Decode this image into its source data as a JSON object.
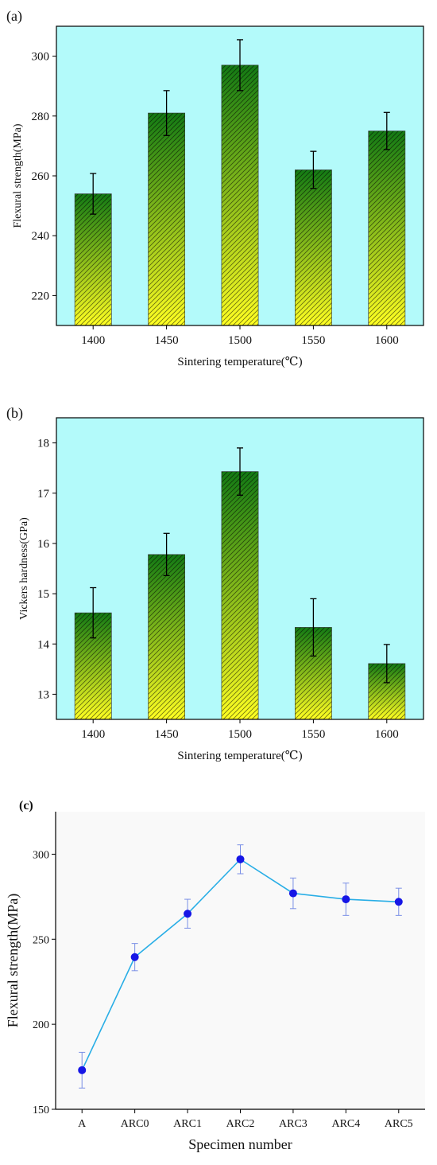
{
  "chart_data": [
    {
      "type": "bar",
      "panel_label": "(a)",
      "categories": [
        "1400",
        "1450",
        "1500",
        "1550",
        "1600"
      ],
      "values": [
        254,
        281,
        297,
        262,
        275
      ],
      "errors": [
        6.8,
        7.5,
        8.5,
        6.2,
        6.2
      ],
      "xlabel": "Sintering temperature(℃)",
      "ylabel": "Flexural strength(MPa)",
      "ylim": [
        210,
        310
      ],
      "yticks": [
        220,
        240,
        260,
        280,
        300
      ],
      "background_color": "#b3fafa",
      "bar_gradient": [
        "#137a14",
        "#ffff22"
      ],
      "grid": false
    },
    {
      "type": "bar",
      "panel_label": "(b)",
      "categories": [
        "1400",
        "1450",
        "1500",
        "1550",
        "1600"
      ],
      "values": [
        14.62,
        15.78,
        17.43,
        14.33,
        13.61
      ],
      "errors": [
        0.5,
        0.42,
        0.47,
        0.57,
        0.38
      ],
      "xlabel": "Sintering temperature(℃)",
      "ylabel": "Vickers hardness(GPa)",
      "ylim": [
        12.5,
        18.5
      ],
      "yticks": [
        13,
        14,
        15,
        16,
        17,
        18
      ],
      "background_color": "#b3fafa",
      "bar_gradient": [
        "#137a14",
        "#ffff22"
      ],
      "grid": false
    },
    {
      "type": "line",
      "panel_label": "(c)",
      "categories": [
        "A",
        "ARC0",
        "ARC1",
        "ARC2",
        "ARC3",
        "ARC4",
        "ARC5"
      ],
      "values": [
        173,
        239.5,
        265,
        297,
        277,
        273.5,
        272
      ],
      "errors": [
        10.5,
        8,
        8.5,
        8.5,
        9,
        9.5,
        8
      ],
      "xlabel": "Specimen number",
      "ylabel": "Flexural strength(MPa)",
      "ylim": [
        150,
        325
      ],
      "yticks": [
        150,
        200,
        250,
        300
      ],
      "line_color": "#29aee6",
      "marker_color": "#1616e6",
      "background_color": "#f9f9f9",
      "grid": false
    }
  ]
}
